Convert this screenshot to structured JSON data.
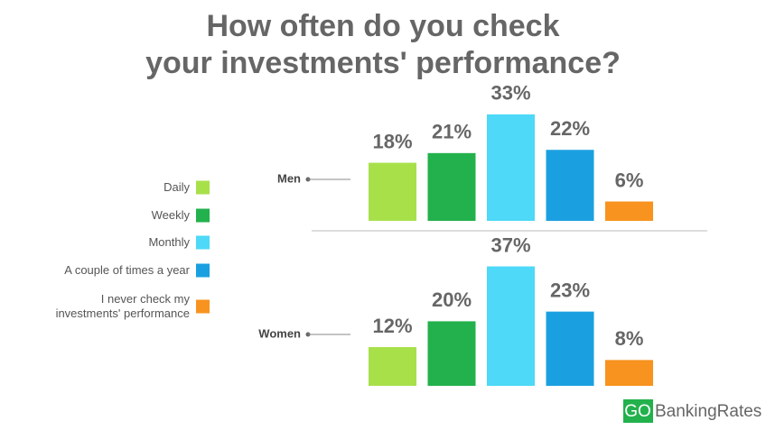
{
  "chart_data": {
    "type": "bar",
    "title": [
      "How often do you check",
      "your investments' performance?"
    ],
    "categories": [
      "Men",
      "Women"
    ],
    "series": [
      {
        "name": "Daily",
        "color": "#a8e04a",
        "values": [
          18,
          12
        ],
        "value_labels": [
          "18%",
          "12%"
        ]
      },
      {
        "name": "Weekly",
        "color": "#22b14c",
        "values": [
          21,
          20
        ],
        "value_labels": [
          "21%",
          "20%"
        ]
      },
      {
        "name": "Monthly",
        "color": "#4dd9f7",
        "values": [
          33,
          37
        ],
        "value_labels": [
          "33%",
          "37%"
        ]
      },
      {
        "name": "A couple of times a year",
        "color": "#1aa0e0",
        "values": [
          22,
          23
        ],
        "value_labels": [
          "22%",
          "23%"
        ]
      },
      {
        "name": "I never check my investments' performance",
        "color": "#f7931e",
        "values": [
          6,
          8
        ],
        "value_labels": [
          "6%",
          "8%"
        ]
      }
    ]
  },
  "logo": {
    "prefix": "GO",
    "text": "BankingRates"
  }
}
